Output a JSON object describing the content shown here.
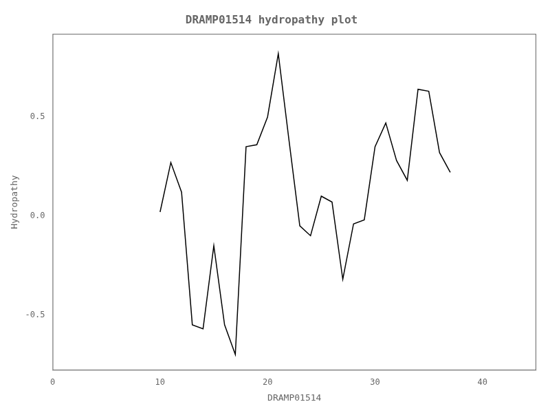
{
  "chart_data": {
    "type": "line",
    "title": "DRAMP01514 hydropathy plot",
    "xlabel": "DRAMP01514",
    "ylabel": "Hydropathy",
    "x": [
      10,
      11,
      12,
      13,
      14,
      15,
      16,
      17,
      18,
      19,
      20,
      21,
      22,
      23,
      24,
      25,
      26,
      27,
      28,
      29,
      30,
      31,
      32,
      33,
      34,
      35,
      36,
      37
    ],
    "values": [
      0.02,
      0.27,
      0.12,
      -0.55,
      -0.57,
      -0.15,
      -0.55,
      -0.7,
      0.35,
      0.36,
      0.5,
      0.82,
      0.38,
      -0.05,
      -0.1,
      0.1,
      0.07,
      -0.32,
      -0.04,
      -0.02,
      0.35,
      0.47,
      0.28,
      0.18,
      0.64,
      0.63,
      0.32,
      0.22
    ],
    "color": "black",
    "xlim": [
      0,
      45
    ],
    "ylim": [
      -0.78,
      0.92
    ],
    "xticks": [
      0,
      10,
      20,
      30,
      40
    ],
    "yticks": [
      -0.5,
      {
        "value": 0,
        "label": "0.0"
      },
      0.5
    ],
    "grid": false
  }
}
